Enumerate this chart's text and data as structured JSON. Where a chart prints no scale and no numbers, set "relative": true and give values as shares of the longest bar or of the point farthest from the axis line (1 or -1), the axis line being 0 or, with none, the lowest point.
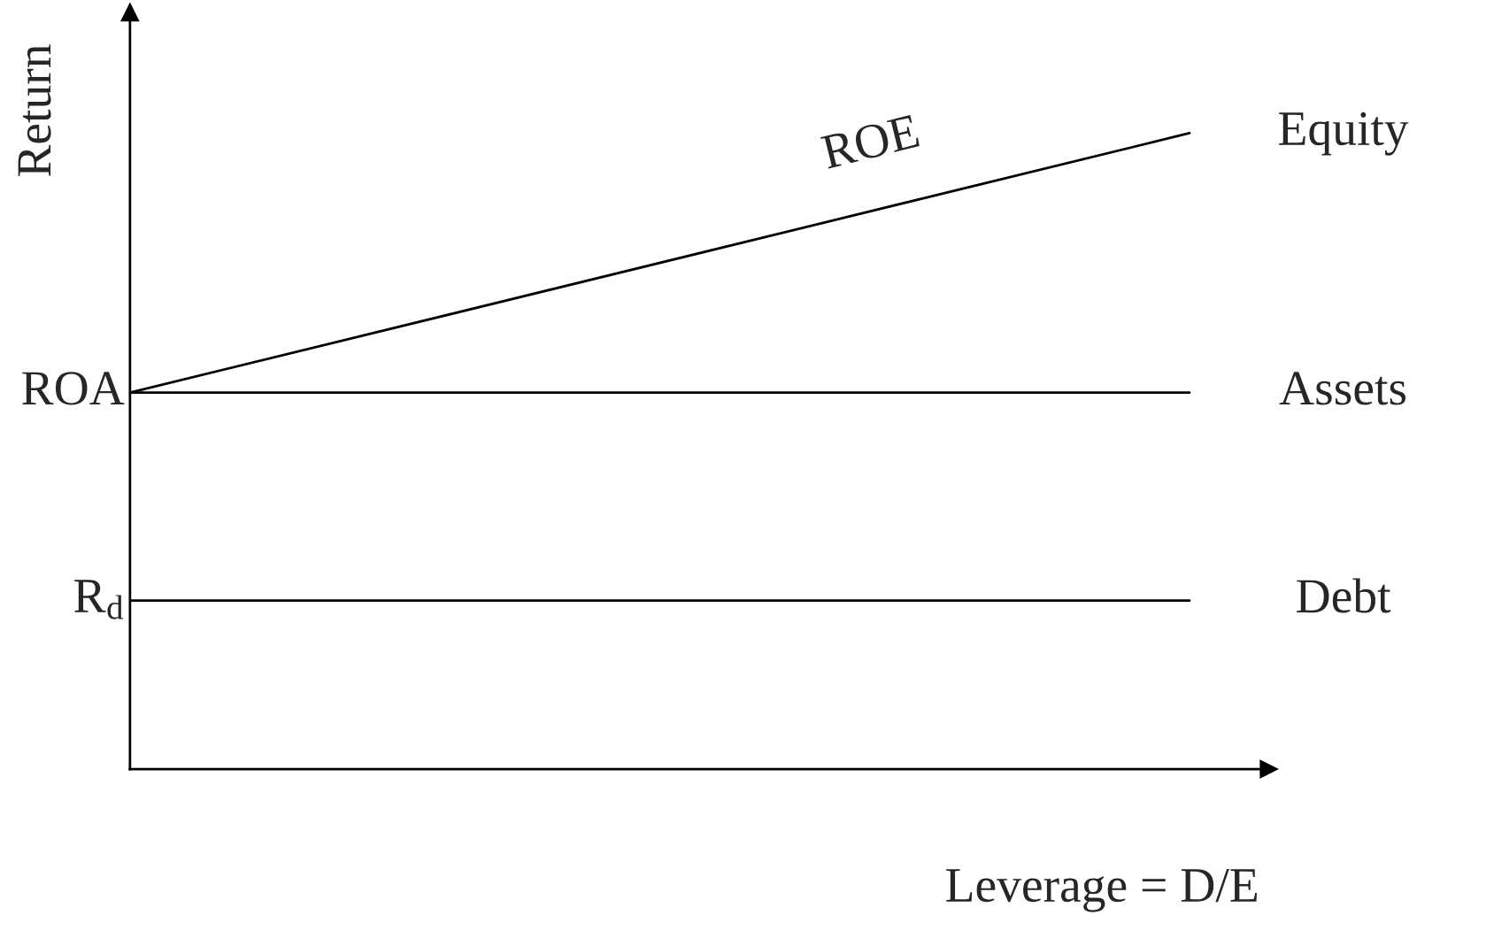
{
  "chart_data": {
    "type": "line",
    "relative": true,
    "ylabel": "Return",
    "xlabel": "Leverage = D/E",
    "categories": [
      null,
      null
    ],
    "series": [
      {
        "name": "Equity",
        "color": "#000000",
        "values": [
          0.592,
          1
        ]
      },
      {
        "name": "Assets",
        "color": "#000000",
        "values": [
          0.592,
          0.592
        ]
      },
      {
        "name": "Debt",
        "color": "#000000",
        "values": [
          0.265,
          0.265
        ]
      }
    ],
    "annotations": [
      "ROE",
      "ROA",
      "R$_{d}$"
    ],
    "legend": false,
    "marker": "none",
    "line_style": "solid"
  }
}
